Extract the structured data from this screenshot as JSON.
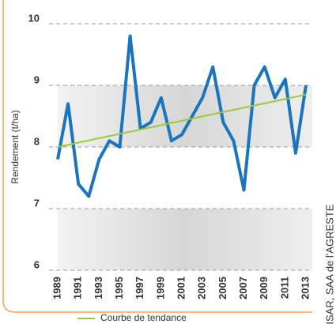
{
  "chart_data": {
    "type": "line",
    "ylabel": "Rendement (t/ha)",
    "source": "DISAR, SAA de l'AGRESTE",
    "x": [
      1989,
      1990,
      1991,
      1992,
      1993,
      1994,
      1995,
      1996,
      1997,
      1998,
      1999,
      2000,
      2001,
      2002,
      2003,
      2004,
      2005,
      2006,
      2007,
      2008,
      2009,
      2010,
      2011,
      2012,
      2013
    ],
    "series": [
      {
        "color": "#1a75bc",
        "values": [
          7.8,
          8.7,
          7.4,
          7.2,
          7.8,
          8.1,
          8.0,
          9.8,
          8.3,
          8.4,
          8.8,
          8.1,
          8.2,
          8.5,
          8.8,
          9.3,
          8.4,
          8.1,
          7.3,
          9.0,
          9.3,
          8.8,
          9.1,
          7.9,
          9.0
        ]
      },
      {
        "name": "Courbe de tendance",
        "color": "#9dc83c",
        "x": [
          1989,
          2013
        ],
        "values": [
          8.0,
          8.85
        ]
      }
    ],
    "shaded_bands": [
      [
        8,
        9
      ],
      [
        6,
        7
      ]
    ],
    "xlim": [
      1989,
      2013
    ],
    "xticks": [
      1989,
      1991,
      1993,
      1995,
      1997,
      1999,
      2001,
      2003,
      2005,
      2007,
      2009,
      2011,
      2013
    ],
    "ylim": [
      6,
      10
    ],
    "yticks": [
      6,
      7,
      8,
      9,
      10
    ],
    "grid": true
  }
}
